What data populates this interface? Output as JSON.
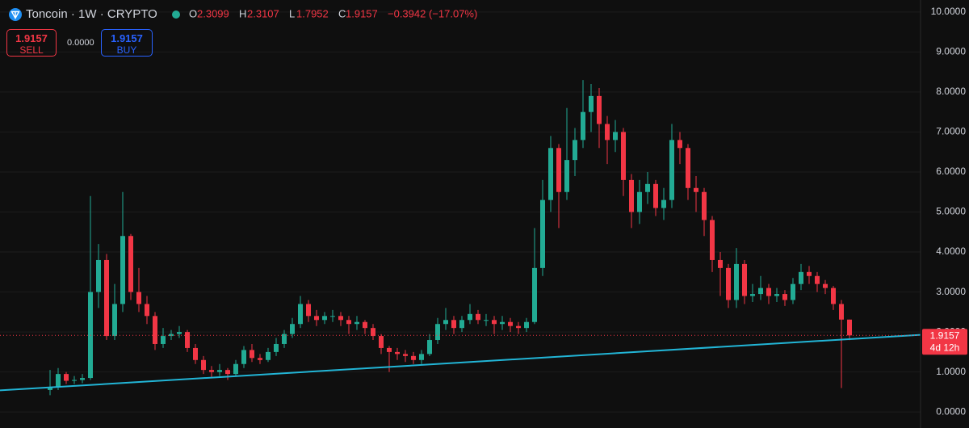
{
  "chart_data": {
    "type": "candlestick",
    "header": {
      "symbol": "Toncoin · 1W · CRYPTO",
      "o_label": "O",
      "o": "2.3099",
      "h_label": "H",
      "h": "2.3107",
      "l_label": "L",
      "l": "1.7952",
      "c_label": "C",
      "c": "1.9157",
      "change": "−0.3942 (−17.07%)"
    },
    "trade": {
      "sell_price": "1.9157",
      "sell": "SELL",
      "spread": "0.0000",
      "buy_price": "1.9157",
      "buy": "BUY"
    },
    "last_price": 1.9157,
    "countdown": "4d 12h",
    "up_color": "#22ab94",
    "down_color": "#f23645",
    "trend_color": "#22b5d6",
    "xlim": [
      -6.2,
      107.8
    ],
    "ylim": [
      -0.4,
      10.3
    ],
    "yticks": [
      {
        "value": 0,
        "label": "0.0000"
      },
      {
        "value": 1,
        "label": "1.0000"
      },
      {
        "value": 2,
        "label": "2.0000"
      },
      {
        "value": 3,
        "label": "3.0000"
      },
      {
        "value": 4,
        "label": "4.0000"
      },
      {
        "value": 5,
        "label": "5.0000"
      },
      {
        "value": 6,
        "label": "6.0000"
      },
      {
        "value": 7,
        "label": "7.0000"
      },
      {
        "value": 8,
        "label": "8.0000"
      },
      {
        "value": 9,
        "label": "9.0000"
      },
      {
        "value": 10,
        "label": "10.0000"
      }
    ],
    "grid": true,
    "trendline": {
      "x": [
        -6.2,
        107.8
      ],
      "y": [
        0.54,
        1.93
      ]
    },
    "open": [
      0.55,
      0.62,
      0.95,
      0.78,
      0.8,
      0.85,
      3.0,
      3.8,
      1.9,
      2.7,
      4.4,
      3.0,
      2.7,
      2.4,
      1.7,
      1.9,
      1.95,
      2.0,
      1.6,
      1.3,
      1.05,
      1.0,
      1.05,
      0.95,
      1.2,
      1.55,
      1.35,
      1.3,
      1.5,
      1.7,
      1.95,
      2.2,
      2.7,
      2.4,
      2.3,
      2.4,
      2.4,
      2.3,
      2.2,
      2.25,
      2.1,
      1.9,
      1.6,
      1.5,
      1.45,
      1.4,
      1.3,
      1.45,
      1.8,
      2.2,
      2.3,
      2.1,
      2.3,
      2.45,
      2.3,
      2.3,
      2.2,
      2.25,
      2.15,
      2.1,
      2.25,
      3.6,
      5.3,
      6.6,
      5.5,
      6.3,
      6.8,
      7.5,
      7.9,
      7.2,
      6.8,
      7.0,
      5.8,
      5.0,
      5.5,
      5.7,
      5.1,
      5.3,
      6.8,
      6.6,
      5.6,
      5.5,
      4.8,
      3.8,
      3.6,
      2.8,
      3.7,
      2.9,
      2.95,
      3.1,
      2.9,
      2.95,
      2.8,
      3.2,
      3.5,
      3.4,
      3.2,
      3.1,
      2.7,
      2.3099
    ],
    "high": [
      1.05,
      1.1,
      1.0,
      0.9,
      0.95,
      5.4,
      4.2,
      3.95,
      3.2,
      5.5,
      4.45,
      3.6,
      2.9,
      2.5,
      2.1,
      2.05,
      2.15,
      2.05,
      1.7,
      1.4,
      1.15,
      1.2,
      1.1,
      1.3,
      1.65,
      1.7,
      1.45,
      1.6,
      1.85,
      2.05,
      2.35,
      2.9,
      2.8,
      2.55,
      2.5,
      2.55,
      2.5,
      2.4,
      2.4,
      2.3,
      2.2,
      1.95,
      1.65,
      1.6,
      1.55,
      1.5,
      1.55,
      1.95,
      2.35,
      2.6,
      2.4,
      2.4,
      2.7,
      2.55,
      2.45,
      2.4,
      2.4,
      2.35,
      2.25,
      2.35,
      4.6,
      5.8,
      6.9,
      6.7,
      7.6,
      7.1,
      8.3,
      8.2,
      8.1,
      7.4,
      7.3,
      7.1,
      5.95,
      5.8,
      6.0,
      5.8,
      5.6,
      7.2,
      7.0,
      6.7,
      5.9,
      5.6,
      4.9,
      4.0,
      3.7,
      4.1,
      3.8,
      3.2,
      3.4,
      3.2,
      3.1,
      3.05,
      3.35,
      3.7,
      3.65,
      3.5,
      3.3,
      3.15,
      2.8,
      2.3107
    ],
    "low": [
      0.42,
      0.55,
      0.7,
      0.7,
      0.72,
      0.8,
      2.6,
      1.8,
      1.8,
      2.5,
      2.8,
      2.5,
      2.2,
      1.55,
      1.6,
      1.8,
      1.85,
      1.5,
      1.2,
      0.95,
      0.85,
      0.9,
      0.8,
      0.9,
      1.1,
      1.25,
      1.2,
      1.25,
      1.4,
      1.6,
      1.85,
      2.1,
      2.25,
      2.15,
      2.2,
      2.25,
      2.15,
      1.95,
      2.05,
      1.95,
      1.8,
      1.45,
      1.0,
      1.3,
      1.25,
      1.2,
      1.2,
      1.4,
      1.7,
      2.05,
      1.95,
      2.0,
      2.2,
      2.2,
      2.15,
      1.95,
      2.05,
      2.0,
      1.95,
      2.0,
      2.2,
      3.4,
      5.0,
      4.6,
      5.3,
      5.9,
      6.6,
      7.0,
      6.6,
      6.2,
      6.5,
      5.4,
      4.6,
      4.7,
      5.2,
      4.9,
      4.8,
      5.1,
      6.2,
      5.3,
      5.0,
      4.4,
      3.5,
      2.9,
      2.6,
      2.6,
      2.7,
      2.75,
      2.8,
      2.7,
      2.75,
      2.65,
      2.7,
      3.05,
      3.2,
      3.0,
      2.95,
      2.55,
      0.6,
      1.7952
    ],
    "close": [
      0.62,
      0.95,
      0.78,
      0.8,
      0.85,
      3.0,
      3.8,
      1.9,
      2.7,
      4.4,
      3.0,
      2.7,
      2.4,
      1.7,
      1.9,
      1.95,
      2.0,
      1.6,
      1.3,
      1.05,
      1.0,
      1.05,
      0.95,
      1.2,
      1.55,
      1.35,
      1.3,
      1.5,
      1.7,
      1.95,
      2.2,
      2.7,
      2.4,
      2.3,
      2.4,
      2.4,
      2.3,
      2.2,
      2.25,
      2.1,
      1.9,
      1.6,
      1.5,
      1.45,
      1.4,
      1.3,
      1.45,
      1.8,
      2.2,
      2.3,
      2.1,
      2.3,
      2.45,
      2.3,
      2.3,
      2.2,
      2.25,
      2.15,
      2.1,
      2.25,
      3.6,
      5.3,
      6.6,
      5.5,
      6.3,
      6.8,
      7.5,
      7.9,
      7.2,
      6.8,
      7.0,
      5.8,
      5.0,
      5.5,
      5.7,
      5.1,
      5.3,
      6.8,
      6.6,
      5.6,
      5.5,
      4.8,
      3.8,
      3.6,
      2.8,
      3.7,
      2.9,
      2.95,
      3.1,
      2.9,
      2.95,
      2.8,
      3.2,
      3.5,
      3.4,
      3.2,
      3.1,
      2.7,
      2.31,
      1.9157
    ]
  }
}
